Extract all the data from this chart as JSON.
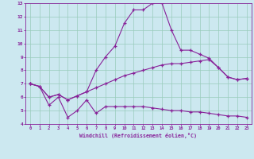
{
  "xlabel": "Windchill (Refroidissement éolien,°C)",
  "background_color": "#cce8f0",
  "grid_color": "#99ccbb",
  "line_color": "#882299",
  "xlim_min": -0.5,
  "xlim_max": 23.5,
  "ylim_min": 4,
  "ylim_max": 13,
  "xticks": [
    0,
    1,
    2,
    3,
    4,
    5,
    6,
    7,
    8,
    9,
    10,
    11,
    12,
    13,
    14,
    15,
    16,
    17,
    18,
    19,
    20,
    21,
    22,
    23
  ],
  "yticks": [
    4,
    5,
    6,
    7,
    8,
    9,
    10,
    11,
    12,
    13
  ],
  "line1_x": [
    0,
    1,
    2,
    3,
    4,
    5,
    6,
    7,
    8,
    9,
    10,
    11,
    12,
    13,
    14,
    15,
    16,
    17,
    18,
    19,
    20,
    21,
    22,
    23
  ],
  "line1_y": [
    7.0,
    6.8,
    5.4,
    6.0,
    4.5,
    5.0,
    5.8,
    4.8,
    5.3,
    5.3,
    5.3,
    5.3,
    5.3,
    5.2,
    5.1,
    5.0,
    5.0,
    4.9,
    4.9,
    4.8,
    4.7,
    4.6,
    4.6,
    4.5
  ],
  "line2_x": [
    0,
    1,
    2,
    3,
    4,
    5,
    6,
    7,
    8,
    9,
    10,
    11,
    12,
    13,
    14,
    15,
    16,
    17,
    18,
    19,
    20,
    21,
    22,
    23
  ],
  "line2_y": [
    7.0,
    6.8,
    6.0,
    6.2,
    5.8,
    6.1,
    6.4,
    8.0,
    9.0,
    9.8,
    11.5,
    12.5,
    12.5,
    13.0,
    13.0,
    11.0,
    9.5,
    9.5,
    9.2,
    8.9,
    8.2,
    7.5,
    7.3,
    7.4
  ],
  "line3_x": [
    0,
    1,
    2,
    3,
    4,
    5,
    6,
    7,
    8,
    9,
    10,
    11,
    12,
    13,
    14,
    15,
    16,
    17,
    18,
    19,
    20,
    21,
    22,
    23
  ],
  "line3_y": [
    7.0,
    6.8,
    6.0,
    6.2,
    5.8,
    6.1,
    6.4,
    6.7,
    7.0,
    7.3,
    7.6,
    7.8,
    8.0,
    8.2,
    8.4,
    8.5,
    8.5,
    8.6,
    8.7,
    8.8,
    8.2,
    7.5,
    7.3,
    7.4
  ]
}
